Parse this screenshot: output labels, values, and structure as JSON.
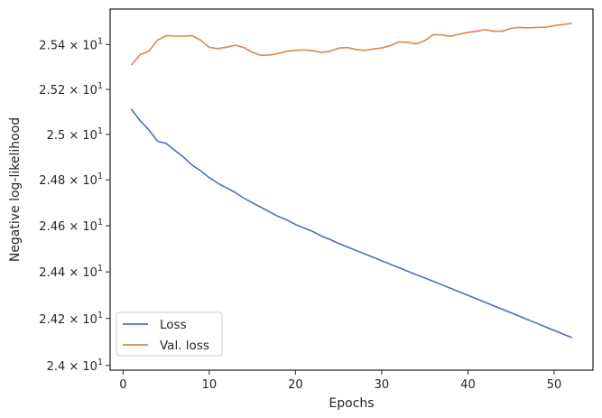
{
  "chart_data": {
    "type": "line",
    "xlabel": "Epochs",
    "ylabel": "Negative log-likelihood",
    "xlim": [
      -1.5,
      54.5
    ],
    "ylim": [
      23.98,
      25.56
    ],
    "yscale": "log",
    "grid": false,
    "legend_position": "lower-left",
    "x_ticks": [
      0,
      10,
      20,
      30,
      40,
      50
    ],
    "x_tick_labels": [
      "0",
      "10",
      "20",
      "30",
      "40",
      "50"
    ],
    "y_ticks": [
      24.0,
      24.2,
      24.4,
      24.6,
      24.8,
      25.0,
      25.2,
      25.4
    ],
    "y_tick_labels": [
      {
        "mantissa": "2.4",
        "exp": "1"
      },
      {
        "mantissa": "2.42",
        "exp": "1"
      },
      {
        "mantissa": "2.44",
        "exp": "1"
      },
      {
        "mantissa": "2.46",
        "exp": "1"
      },
      {
        "mantissa": "2.48",
        "exp": "1"
      },
      {
        "mantissa": "2.5",
        "exp": "1"
      },
      {
        "mantissa": "2.52",
        "exp": "1"
      },
      {
        "mantissa": "2.54",
        "exp": "1"
      }
    ],
    "x": [
      1,
      2,
      3,
      4,
      5,
      6,
      7,
      8,
      9,
      10,
      11,
      12,
      13,
      14,
      15,
      16,
      17,
      18,
      19,
      20,
      21,
      22,
      23,
      24,
      25,
      26,
      27,
      28,
      29,
      30,
      31,
      32,
      33,
      34,
      35,
      36,
      37,
      38,
      39,
      40,
      41,
      42,
      43,
      44,
      45,
      46,
      47,
      48,
      49,
      50,
      51,
      52
    ],
    "series": [
      {
        "name": "Loss",
        "color": "#4c72b0",
        "values": [
          25.11,
          25.06,
          25.02,
          24.97,
          24.96,
          24.93,
          24.9,
          24.865,
          24.84,
          24.81,
          24.785,
          24.765,
          24.745,
          24.72,
          24.7,
          24.68,
          24.66,
          24.64,
          24.625,
          24.605,
          24.59,
          24.575,
          24.555,
          24.54,
          24.523,
          24.508,
          24.493,
          24.478,
          24.463,
          24.448,
          24.433,
          24.418,
          24.403,
          24.388,
          24.374,
          24.359,
          24.344,
          24.329,
          24.314,
          24.299,
          24.284,
          24.269,
          24.254,
          24.239,
          24.224,
          24.209,
          24.194,
          24.179,
          24.164,
          24.149,
          24.134,
          24.119
        ]
      },
      {
        "name": "Val. loss",
        "color": "#dd8452",
        "values": [
          25.31,
          25.355,
          25.37,
          25.42,
          25.44,
          25.438,
          25.438,
          25.44,
          25.42,
          25.387,
          25.382,
          25.388,
          25.397,
          25.387,
          25.365,
          25.352,
          25.353,
          25.36,
          25.37,
          25.374,
          25.376,
          25.373,
          25.365,
          25.37,
          25.384,
          25.387,
          25.378,
          25.374,
          25.38,
          25.385,
          25.395,
          25.412,
          25.41,
          25.403,
          25.418,
          25.445,
          25.443,
          25.437,
          25.447,
          25.455,
          25.46,
          25.467,
          25.46,
          25.46,
          25.473,
          25.477,
          25.475,
          25.477,
          25.478,
          25.485,
          25.49,
          25.495
        ]
      }
    ]
  }
}
